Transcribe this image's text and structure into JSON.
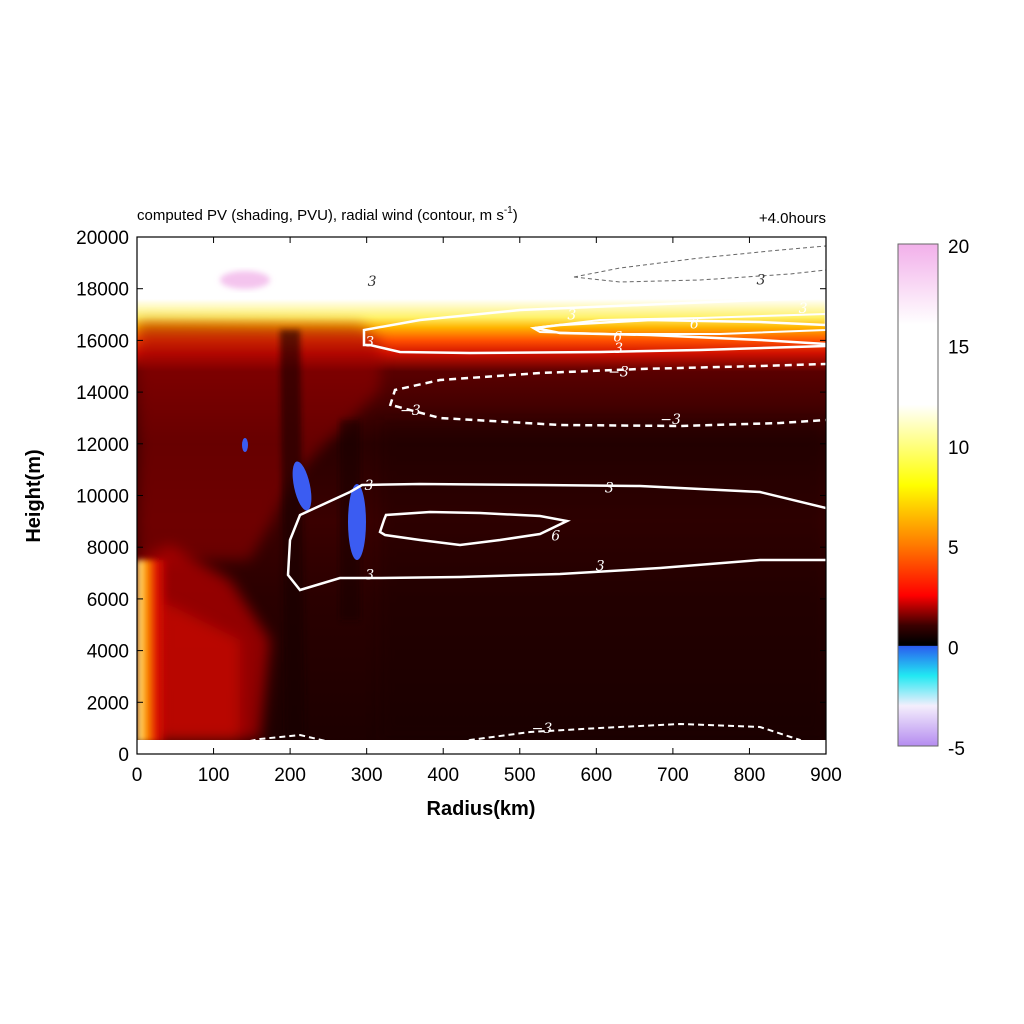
{
  "chart_data": {
    "type": "heatmap",
    "title": "computed PV (shading, PVU), radial wind (contour, m s",
    "title_superscript": "-1",
    "title_suffix": ")",
    "time_label": "+4.0hours",
    "xlabel": "Radius(km)",
    "ylabel": "Height(m)",
    "xlim": [
      0,
      900
    ],
    "ylim": [
      0,
      20000
    ],
    "x_ticks": [
      "0",
      "100",
      "200",
      "300",
      "400",
      "500",
      "600",
      "700",
      "800",
      "900"
    ],
    "y_ticks": [
      "0",
      "2000",
      "4000",
      "6000",
      "8000",
      "10000",
      "12000",
      "14000",
      "16000",
      "18000",
      "20000"
    ],
    "colorbar": {
      "range": [
        -5,
        20
      ],
      "tick_labels": [
        "20",
        "15",
        "10",
        "5",
        "0",
        "-5"
      ],
      "stops": [
        {
          "value": -5,
          "color": "#b58cf0"
        },
        {
          "value": -3.5,
          "color": "#f4eefc"
        },
        {
          "value": -2,
          "color": "#22e8f2"
        },
        {
          "value": -0.1,
          "color": "#2a5cf0"
        },
        {
          "value": 0,
          "color": "#000000"
        },
        {
          "value": 1,
          "color": "#3a0000"
        },
        {
          "value": 2.5,
          "color": "#ff0000"
        },
        {
          "value": 5,
          "color": "#ff7a00"
        },
        {
          "value": 8,
          "color": "#ffff00"
        },
        {
          "value": 12,
          "color": "#ffffff"
        },
        {
          "value": 16,
          "color": "#ffffff"
        },
        {
          "value": 20,
          "color": "#f2b0ea"
        }
      ]
    },
    "contour_labels": [
      {
        "text": "3",
        "r": 307,
        "z": 18300
      },
      {
        "text": "3",
        "r": 815,
        "z": 18350
      },
      {
        "text": "3",
        "r": 568,
        "z": 17000
      },
      {
        "text": "3",
        "r": 870,
        "z": 17250
      },
      {
        "text": "6",
        "r": 728,
        "z": 16650
      },
      {
        "text": "6",
        "r": 628,
        "z": 16150
      },
      {
        "text": "3",
        "r": 629,
        "z": 15700
      },
      {
        "text": "3",
        "r": 304,
        "z": 15950
      },
      {
        "text": "−3",
        "r": 629,
        "z": 14800
      },
      {
        "text": "−3",
        "r": 357,
        "z": 13300
      },
      {
        "text": "−3",
        "r": 697,
        "z": 12950
      },
      {
        "text": "3",
        "r": 303,
        "z": 10400
      },
      {
        "text": "3",
        "r": 617,
        "z": 10300
      },
      {
        "text": "6",
        "r": 547,
        "z": 8450
      },
      {
        "text": "3",
        "r": 304,
        "z": 6950
      },
      {
        "text": "3",
        "r": 605,
        "z": 7300
      },
      {
        "text": "−3",
        "r": 529,
        "z": 1000
      }
    ]
  }
}
